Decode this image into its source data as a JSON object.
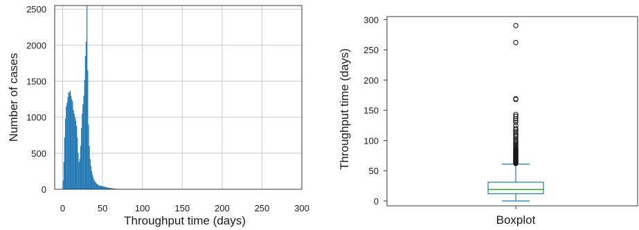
{
  "chart_data": [
    {
      "type": "bar",
      "subtype": "histogram",
      "title": "",
      "xlabel": "Throughput time (days)",
      "ylabel": "Number of cases",
      "xlim": [
        -10,
        300
      ],
      "ylim": [
        0,
        2550
      ],
      "grid": true,
      "color": "#1f77b4",
      "xticks": [
        0,
        50,
        100,
        150,
        200,
        250,
        300
      ],
      "yticks": [
        0,
        500,
        1000,
        1500,
        2000,
        2500
      ],
      "bins": [
        [
          0,
          120
        ],
        [
          1,
          380
        ],
        [
          2,
          720
        ],
        [
          3,
          980
        ],
        [
          4,
          1150
        ],
        [
          5,
          1200
        ],
        [
          6,
          1280
        ],
        [
          7,
          1350
        ],
        [
          8,
          1340
        ],
        [
          9,
          1370
        ],
        [
          10,
          1300
        ],
        [
          11,
          1250
        ],
        [
          12,
          1220
        ],
        [
          13,
          1100
        ],
        [
          14,
          1050
        ],
        [
          15,
          1000
        ],
        [
          16,
          950
        ],
        [
          17,
          880
        ],
        [
          18,
          720
        ],
        [
          19,
          500
        ],
        [
          20,
          380
        ],
        [
          21,
          420
        ],
        [
          22,
          600
        ],
        [
          23,
          850
        ],
        [
          24,
          1050
        ],
        [
          25,
          1180
        ],
        [
          26,
          1300
        ],
        [
          27,
          1520
        ],
        [
          28,
          1850
        ],
        [
          29,
          2050
        ],
        [
          30,
          2550
        ],
        [
          31,
          1650
        ],
        [
          32,
          900
        ],
        [
          33,
          600
        ],
        [
          34,
          420
        ],
        [
          35,
          320
        ],
        [
          36,
          250
        ],
        [
          37,
          200
        ],
        [
          38,
          160
        ],
        [
          39,
          130
        ],
        [
          40,
          110
        ],
        [
          41,
          95
        ],
        [
          42,
          80
        ],
        [
          43,
          70
        ],
        [
          44,
          62
        ],
        [
          45,
          55
        ],
        [
          46,
          50
        ],
        [
          47,
          48
        ],
        [
          48,
          46
        ],
        [
          49,
          44
        ],
        [
          50,
          42
        ],
        [
          51,
          38
        ],
        [
          52,
          35
        ],
        [
          53,
          32
        ],
        [
          54,
          30
        ],
        [
          55,
          27
        ],
        [
          56,
          24
        ],
        [
          57,
          22
        ],
        [
          58,
          20
        ],
        [
          59,
          18
        ],
        [
          60,
          16
        ],
        [
          61,
          14
        ],
        [
          62,
          12
        ],
        [
          63,
          11
        ],
        [
          64,
          10
        ],
        [
          65,
          9
        ],
        [
          66,
          8
        ],
        [
          67,
          7
        ],
        [
          68,
          6
        ],
        [
          69,
          5
        ],
        [
          70,
          4
        ],
        [
          72,
          4
        ],
        [
          74,
          3
        ],
        [
          76,
          3
        ],
        [
          78,
          2
        ],
        [
          80,
          2
        ],
        [
          82,
          2
        ],
        [
          85,
          1
        ],
        [
          88,
          1
        ],
        [
          92,
          1
        ],
        [
          100,
          1
        ]
      ]
    },
    {
      "type": "box",
      "xlabel": "Boxplot",
      "ylabel": "Throughput time (days)",
      "ylim": [
        -8,
        305
      ],
      "yticks": [
        0,
        50,
        100,
        150,
        200,
        250,
        300
      ],
      "box_color": "#1f77b4",
      "median_color": "#2ca02c",
      "whisker_low": 0,
      "q1": 12,
      "median": 19,
      "q3": 31,
      "whisker_high": 61,
      "outliers": [
        62,
        63,
        64,
        65,
        66,
        67,
        68,
        69,
        70,
        71,
        72,
        73,
        74,
        75,
        76,
        77,
        78,
        79,
        80,
        81,
        82,
        83,
        84,
        85,
        86,
        88,
        90,
        92,
        94,
        96,
        98,
        100,
        103,
        106,
        108,
        110,
        113,
        115,
        118,
        120,
        125,
        130,
        133,
        136,
        140,
        143,
        168,
        169,
        262,
        290
      ]
    }
  ]
}
